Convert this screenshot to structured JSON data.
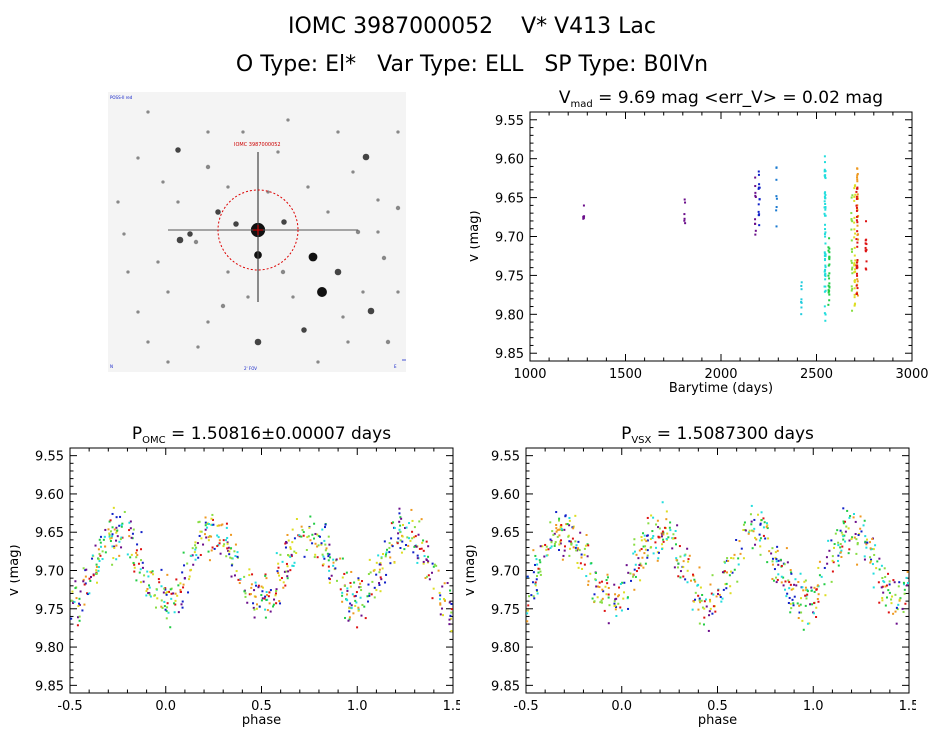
{
  "header": {
    "title_line1": "IOMC 3987000052    V* V413 Lac",
    "title_line2": "O Type: El*   Var Type: ELL   SP Type: B0IVn"
  },
  "finder": {
    "label": "IOMC 3987000052",
    "corner_tl": "POSS-II red",
    "corner_bl": "N",
    "corner_br": "E",
    "bottom_label": "2' FOV"
  },
  "chart_data": [
    {
      "id": "lc",
      "type": "scatter",
      "title": "V_mad = 9.69 mag <err_V> = 0.02 mag",
      "title_parts": {
        "base": "V",
        "sub": "mad",
        "rest": " = 9.69 mag <err_V> = 0.02 mag"
      },
      "xlabel": "Barytime (days)",
      "ylabel": "V (mag)",
      "xlim": [
        1000,
        3000
      ],
      "ylim": [
        9.86,
        9.54
      ],
      "xticks": [
        "1000",
        "1500",
        "2000",
        "2500",
        "3000"
      ],
      "yticks": [
        "9.55",
        "9.60",
        "9.65",
        "9.70",
        "9.75",
        "9.80",
        "9.85"
      ],
      "clusters": [
        {
          "x": 1280,
          "ymin": 9.655,
          "ymax": 9.685,
          "color": "#6a0d8a",
          "n": 6
        },
        {
          "x": 1810,
          "ymin": 9.648,
          "ymax": 9.688,
          "color": "#6a0d8a",
          "n": 6
        },
        {
          "x": 2180,
          "ymin": 9.61,
          "ymax": 9.7,
          "color": "#6a0d8a",
          "n": 10
        },
        {
          "x": 2200,
          "ymin": 9.585,
          "ymax": 9.71,
          "color": "#1020c8",
          "n": 14
        },
        {
          "x": 2290,
          "ymin": 9.61,
          "ymax": 9.695,
          "color": "#1a7ad0",
          "n": 8
        },
        {
          "x": 2420,
          "ymin": 9.755,
          "ymax": 9.8,
          "color": "#22ccdd",
          "n": 8
        },
        {
          "x": 2545,
          "ymin": 9.595,
          "ymax": 9.815,
          "color": "#22dddd",
          "n": 55
        },
        {
          "x": 2565,
          "ymin": 9.7,
          "ymax": 9.79,
          "color": "#22cc44",
          "n": 25
        },
        {
          "x": 2685,
          "ymin": 9.64,
          "ymax": 9.8,
          "color": "#88dd44",
          "n": 20
        },
        {
          "x": 2700,
          "ymin": 9.63,
          "ymax": 9.79,
          "color": "#dddd22",
          "n": 30
        },
        {
          "x": 2715,
          "ymin": 9.61,
          "ymax": 9.79,
          "color": "#ee9920",
          "n": 25
        },
        {
          "x": 2712,
          "ymin": 9.615,
          "ymax": 9.78,
          "color": "#dd1111",
          "n": 30
        },
        {
          "x": 2760,
          "ymin": 9.68,
          "ymax": 9.745,
          "color": "#dd1111",
          "n": 12
        }
      ]
    },
    {
      "id": "ph1",
      "type": "scatter",
      "title": "P_OMC = 1.50816±0.00007 days",
      "title_parts": {
        "base": "P",
        "sub": "OMC",
        "rest": " = 1.50816±0.00007 days"
      },
      "xlabel": "phase",
      "ylabel": "V (mag)",
      "xlim": [
        -0.5,
        1.5
      ],
      "ylim": [
        9.86,
        9.54
      ],
      "xticks": [
        "-0.5",
        "0.0",
        "0.5",
        "1.0",
        "1.5"
      ],
      "yticks": [
        "9.55",
        "9.60",
        "9.65",
        "9.70",
        "9.75",
        "9.80",
        "9.85"
      ],
      "curve": {
        "mean": 9.695,
        "amplitude": 0.045,
        "min_phase": 0.0,
        "scatter": 0.025
      },
      "colors": [
        "#22dddd",
        "#22cc44",
        "#dd1111",
        "#ee9920",
        "#dddd22",
        "#6a0d8a",
        "#1020c8",
        "#88dd44"
      ]
    },
    {
      "id": "ph2",
      "type": "scatter",
      "title": "P_VSX = 1.5087300 days",
      "title_parts": {
        "base": "P",
        "sub": "VSX",
        "rest": " = 1.5087300 days"
      },
      "xlabel": "phase",
      "ylabel": "V (mag)",
      "xlim": [
        -0.5,
        1.5
      ],
      "ylim": [
        9.86,
        9.54
      ],
      "xticks": [
        "-0.5",
        "0.0",
        "0.5",
        "1.0",
        "1.5"
      ],
      "yticks": [
        "9.55",
        "9.60",
        "9.65",
        "9.70",
        "9.75",
        "9.80",
        "9.85"
      ],
      "curve": {
        "mean": 9.695,
        "amplitude": 0.045,
        "min_phase": -0.05,
        "scatter": 0.025
      },
      "colors": [
        "#22dddd",
        "#22cc44",
        "#dd1111",
        "#ee9920",
        "#dddd22",
        "#6a0d8a",
        "#1020c8",
        "#88dd44"
      ]
    }
  ]
}
